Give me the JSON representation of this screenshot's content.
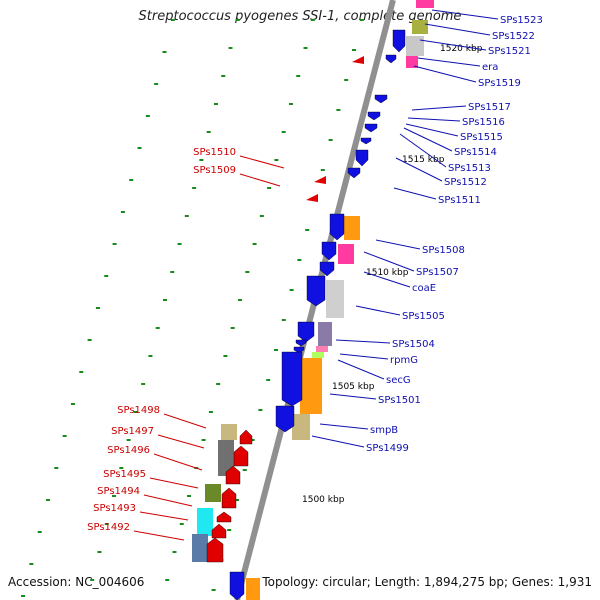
{
  "title": "Streptococcus pyogenes SSI-1, complete genome",
  "footer": {
    "accession": "Accession: NC_004606",
    "summary": "Topology: circular; Length: 1,894,275 bp; Genes: 1,931"
  },
  "colors": {
    "backbone": "#909090",
    "forward_strand": "#1010e0",
    "reverse_strand": "#e00000",
    "ticks": "#1a8a1a",
    "right_label": "#1010b0",
    "left_label": "#cc0000"
  },
  "kbp_labels": [
    "1520 kbp",
    "1515 kbp",
    "1510 kbp",
    "1505 kbp",
    "1500 kbp"
  ],
  "right_labels": [
    "SPs1523",
    "SPs1522",
    "SPs1521",
    "era",
    "SPs1519",
    "SPs1517",
    "SPs1516",
    "SPs1515",
    "SPs1514",
    "SPs1513",
    "SPs1512",
    "SPs1511",
    "SPs1508",
    "SPs1507",
    "coaE",
    "SPs1505",
    "SPs1504",
    "rpmG",
    "secG",
    "SPs1501",
    "smpB",
    "SPs1499"
  ],
  "left_labels": [
    "SPs1510",
    "SPs1509",
    "SPs1498",
    "SPs1497",
    "SPs1496",
    "SPs1495",
    "SPs1494",
    "SPs1493",
    "SPs1492"
  ]
}
